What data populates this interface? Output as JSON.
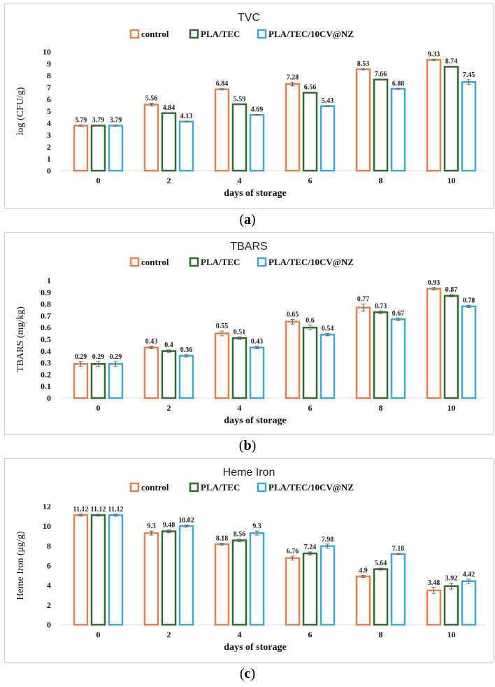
{
  "chart_data": [
    {
      "id": "a",
      "type": "bar",
      "title": "TVC",
      "xlabel": "days of storage",
      "ylabel": "log (CFU/g)",
      "categories": [
        "0",
        "2",
        "4",
        "6",
        "8",
        "10"
      ],
      "ylim": [
        0,
        10
      ],
      "yticks": [
        0,
        1,
        2,
        3,
        4,
        5,
        6,
        7,
        8,
        9,
        10
      ],
      "grid": false,
      "legend_position": "top",
      "series": [
        {
          "name": "control",
          "color": "#e8804a",
          "values": [
            3.79,
            5.56,
            6.84,
            7.28,
            8.53,
            9.33
          ],
          "labels": [
            "3.79",
            "5.56",
            "6.84",
            "7.28",
            "8.53",
            "9.33"
          ],
          "errors": [
            0.05,
            0.12,
            0.06,
            0.15,
            0.06,
            0.06
          ]
        },
        {
          "name": "PLA/TEC",
          "color": "#2e6b2e",
          "values": [
            3.79,
            4.84,
            5.59,
            6.56,
            7.66,
            8.74
          ],
          "labels": [
            "3.79",
            "4.84",
            "5.59",
            "6.56",
            "7.66",
            "8.74"
          ],
          "errors": [
            0.05,
            0.04,
            0.04,
            0.05,
            0.05,
            0.04
          ]
        },
        {
          "name": "PLA/TEC/10CV@NZ",
          "color": "#3aa8d8",
          "values": [
            3.79,
            4.13,
            4.69,
            5.43,
            6.88,
            7.45
          ],
          "labels": [
            "3.79",
            "4.13",
            "4.69",
            "5.43",
            "6.88",
            "7.45"
          ],
          "errors": [
            0.05,
            0.04,
            0.04,
            0.04,
            0.04,
            0.2
          ]
        }
      ]
    },
    {
      "id": "b",
      "type": "bar",
      "title": "TBARS",
      "xlabel": "days of storage",
      "ylabel": "TBARS (mg/kg)",
      "categories": [
        "0",
        "2",
        "4",
        "6",
        "8",
        "10"
      ],
      "ylim": [
        0,
        1
      ],
      "yticks": [
        0,
        0.1,
        0.2,
        0.3,
        0.4,
        0.5,
        0.6,
        0.7,
        0.8,
        0.9,
        1
      ],
      "ytick_labels": [
        "0",
        "0.1",
        "0.2",
        "0.3",
        "0.4",
        "0.5",
        "0.6",
        "0.7",
        "0.8",
        "0.9",
        "1"
      ],
      "grid": false,
      "legend_position": "top",
      "series": [
        {
          "name": "control",
          "color": "#e8804a",
          "values": [
            0.29,
            0.43,
            0.55,
            0.65,
            0.77,
            0.93
          ],
          "labels": [
            "0.29",
            "0.43",
            "0.55",
            "0.65",
            "0.77",
            "0.93"
          ],
          "errors": [
            0.02,
            0.01,
            0.02,
            0.02,
            0.03,
            0.01
          ]
        },
        {
          "name": "PLA/TEC",
          "color": "#2e6b2e",
          "values": [
            0.29,
            0.4,
            0.51,
            0.6,
            0.73,
            0.87
          ],
          "labels": [
            "0.29",
            "0.4",
            "0.51",
            "0.6",
            "0.73",
            "0.87"
          ],
          "errors": [
            0.02,
            0.01,
            0.01,
            0.02,
            0.01,
            0.01
          ]
        },
        {
          "name": "PLA/TEC/10CV@NZ",
          "color": "#3aa8d8",
          "values": [
            0.29,
            0.36,
            0.43,
            0.54,
            0.67,
            0.78
          ],
          "labels": [
            "0.29",
            "0.36",
            "0.43",
            "0.54",
            "0.67",
            "0.78"
          ],
          "errors": [
            0.02,
            0.01,
            0.01,
            0.01,
            0.01,
            0.01
          ]
        }
      ]
    },
    {
      "id": "c",
      "type": "bar",
      "title": "Heme Iron",
      "xlabel": "days of storage",
      "ylabel": "Heme Iron  (μg/g)",
      "categories": [
        "0",
        "2",
        "4",
        "6",
        "8",
        "10"
      ],
      "ylim": [
        0,
        12
      ],
      "yticks": [
        0,
        2,
        4,
        6,
        8,
        10,
        12
      ],
      "grid": false,
      "legend_position": "top",
      "series": [
        {
          "name": "control",
          "color": "#e8804a",
          "values": [
            11.12,
            9.3,
            8.18,
            6.76,
            4.9,
            3.48
          ],
          "labels": [
            "11.12",
            "9.3",
            "8.18",
            "6.76",
            "4.9",
            "3.48"
          ],
          "errors": [
            0.1,
            0.2,
            0.1,
            0.2,
            0.1,
            0.3
          ]
        },
        {
          "name": "PLA/TEC",
          "color": "#2e6b2e",
          "values": [
            11.12,
            9.48,
            8.56,
            7.24,
            5.64,
            3.92
          ],
          "labels": [
            "11.12",
            "9.48",
            "8.56",
            "7.24",
            "5.64",
            "3.92"
          ],
          "errors": [
            0.1,
            0.15,
            0.15,
            0.15,
            0.1,
            0.3
          ]
        },
        {
          "name": "PLA/TEC/10CV@NZ",
          "color": "#3aa8d8",
          "values": [
            11.12,
            10.02,
            9.3,
            7.98,
            7.18,
            4.42
          ],
          "labels": [
            "11.12",
            "10.02",
            "9.3",
            "7.98",
            "7.18",
            "4.42"
          ],
          "errors": [
            0.1,
            0.1,
            0.2,
            0.2,
            0.05,
            0.2
          ]
        }
      ]
    }
  ],
  "captions": [
    {
      "open": "(",
      "letter": "a",
      "close": ")"
    },
    {
      "open": "(",
      "letter": "b",
      "close": ")"
    },
    {
      "open": "(",
      "letter": "c",
      "close": ")"
    }
  ]
}
